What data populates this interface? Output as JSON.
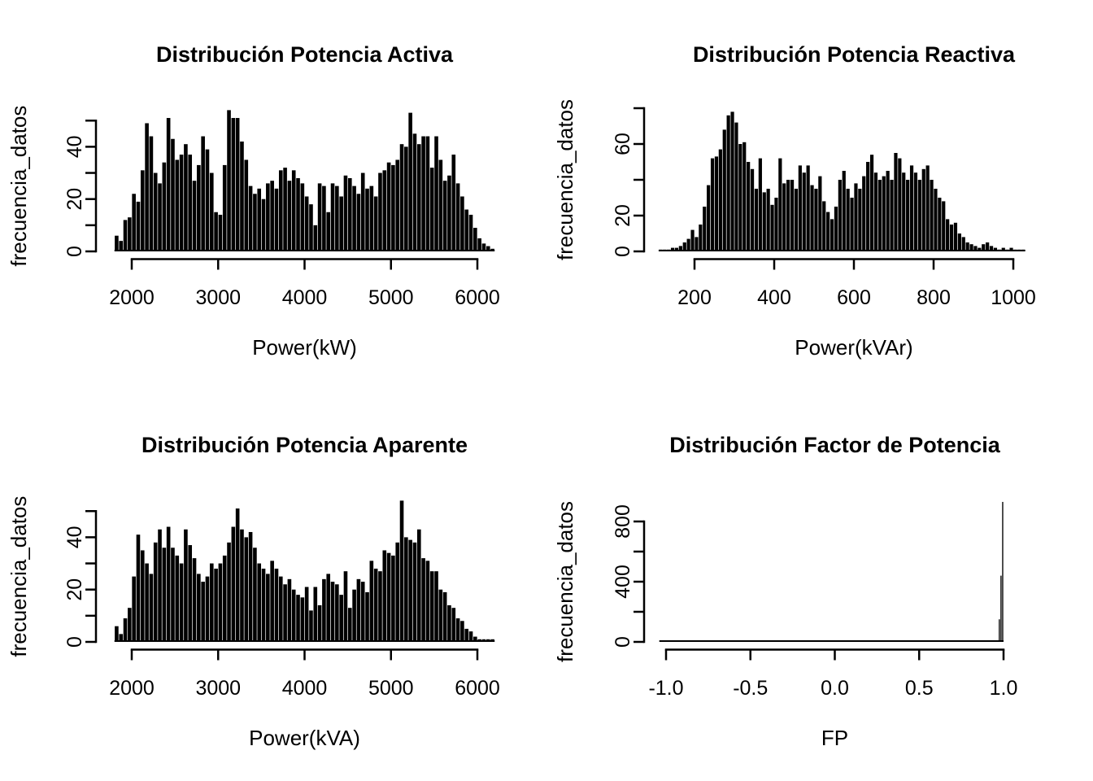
{
  "page": {
    "background": "#ffffff",
    "foreground": "#000000",
    "description": "2x2 grid of base-R style histograms"
  },
  "chart_data": [
    {
      "type": "bar",
      "variant": "histogram",
      "title": "Distribución Potencia Activa",
      "xlabel": "Power(kW)",
      "ylabel": "frecuencia_datos",
      "bar_color": "#000000",
      "grid": false,
      "legend": null,
      "x_ticks": [
        {
          "v": 2000,
          "label": "2000"
        },
        {
          "v": 3000,
          "label": "3000"
        },
        {
          "v": 4000,
          "label": "4000"
        },
        {
          "v": 5000,
          "label": "5000"
        },
        {
          "v": 6000,
          "label": "6000"
        }
      ],
      "y_ticks": [
        {
          "v": 0,
          "label": "0"
        },
        {
          "v": 10
        },
        {
          "v": 20,
          "label": "20"
        },
        {
          "v": 30
        },
        {
          "v": 40,
          "label": "40"
        },
        {
          "v": 50
        }
      ],
      "xlim": [
        1800,
        6200
      ],
      "ylim": [
        0,
        55
      ],
      "bins": {
        "start": 1800,
        "width": 50
      },
      "heights": [
        6,
        4,
        12,
        13,
        22,
        19,
        31,
        49,
        44,
        30,
        26,
        34,
        51,
        43,
        35,
        37,
        41,
        37,
        27,
        33,
        44,
        39,
        30,
        15,
        14,
        33,
        54,
        51,
        51,
        42,
        35,
        25,
        22,
        24,
        20,
        26,
        27,
        24,
        31,
        32,
        27,
        31,
        28,
        26,
        21,
        18,
        10,
        26,
        25,
        15,
        26,
        25,
        21,
        29,
        28,
        25,
        22,
        30,
        24,
        25,
        21,
        30,
        31,
        34,
        33,
        35,
        41,
        40,
        53,
        45,
        41,
        44,
        44,
        32,
        44,
        35,
        27,
        29,
        37,
        26,
        21,
        16,
        14,
        9,
        5,
        3,
        2,
        1
      ]
    },
    {
      "type": "bar",
      "variant": "histogram",
      "title": "Distribución Potencia Reactiva",
      "xlabel": "Power(kVAr)",
      "ylabel": "frecuencia_datos",
      "bar_color": "#000000",
      "grid": false,
      "legend": null,
      "x_ticks": [
        {
          "v": 200,
          "label": "200"
        },
        {
          "v": 400,
          "label": "400"
        },
        {
          "v": 600,
          "label": "600"
        },
        {
          "v": 800,
          "label": "800"
        },
        {
          "v": 1000,
          "label": "1000"
        }
      ],
      "y_ticks": [
        {
          "v": 0,
          "label": "0"
        },
        {
          "v": 20,
          "label": "20"
        },
        {
          "v": 40
        },
        {
          "v": 60,
          "label": "60"
        },
        {
          "v": 80
        }
      ],
      "xlim": [
        110,
        1030
      ],
      "ylim": [
        0,
        80
      ],
      "bins": {
        "start": 110,
        "width": 10
      },
      "heights": [
        1,
        1,
        1,
        2,
        2,
        3,
        5,
        7,
        12,
        8,
        15,
        25,
        37,
        52,
        53,
        57,
        68,
        76,
        78,
        72,
        60,
        61,
        50,
        46,
        35,
        52,
        33,
        35,
        26,
        30,
        52,
        38,
        40,
        40,
        35,
        48,
        44,
        48,
        37,
        35,
        42,
        28,
        22,
        18,
        25,
        40,
        45,
        35,
        30,
        38,
        35,
        42,
        50,
        54,
        44,
        40,
        42,
        45,
        40,
        55,
        52,
        44,
        40,
        48,
        44,
        40,
        46,
        48,
        40,
        35,
        30,
        28,
        18,
        15,
        16,
        10,
        8,
        5,
        4,
        3,
        2,
        4,
        5,
        3,
        2,
        1,
        2,
        1,
        2,
        1,
        1,
        1
      ]
    },
    {
      "type": "bar",
      "variant": "histogram",
      "title": "Distribución Potencia Aparente",
      "xlabel": "Power(kVA)",
      "ylabel": "frecuencia_datos",
      "bar_color": "#000000",
      "grid": false,
      "legend": null,
      "x_ticks": [
        {
          "v": 2000,
          "label": "2000"
        },
        {
          "v": 3000,
          "label": "3000"
        },
        {
          "v": 4000,
          "label": "4000"
        },
        {
          "v": 5000,
          "label": "5000"
        },
        {
          "v": 6000,
          "label": "6000"
        }
      ],
      "y_ticks": [
        {
          "v": 0,
          "label": "0"
        },
        {
          "v": 10
        },
        {
          "v": 20,
          "label": "20"
        },
        {
          "v": 30
        },
        {
          "v": 40,
          "label": "40"
        },
        {
          "v": 50
        }
      ],
      "xlim": [
        1800,
        6200
      ],
      "ylim": [
        0,
        55
      ],
      "bins": {
        "start": 1800,
        "width": 50
      },
      "heights": [
        6,
        3,
        9,
        13,
        25,
        41,
        35,
        30,
        26,
        38,
        43,
        36,
        44,
        36,
        33,
        30,
        43,
        37,
        32,
        26,
        23,
        25,
        30,
        28,
        30,
        33,
        38,
        44,
        51,
        43,
        40,
        42,
        36,
        30,
        28,
        26,
        31,
        28,
        25,
        22,
        24,
        20,
        18,
        17,
        21,
        12,
        21,
        14,
        24,
        26,
        23,
        22,
        18,
        27,
        13,
        20,
        24,
        23,
        19,
        31,
        28,
        27,
        35,
        34,
        33,
        38,
        54,
        40,
        39,
        38,
        43,
        32,
        31,
        27,
        27,
        20,
        19,
        14,
        13,
        9,
        8,
        5,
        4,
        2,
        1,
        1,
        1,
        1
      ]
    },
    {
      "type": "bar",
      "variant": "histogram",
      "title": "Distribución Factor de Potencia",
      "xlabel": "FP",
      "ylabel": "frecuencia_datos",
      "bar_color": "#000000",
      "grid": false,
      "legend": null,
      "x_ticks": [
        {
          "v": -1.0,
          "label": "-1.0"
        },
        {
          "v": -0.5,
          "label": "-0.5"
        },
        {
          "v": 0.0,
          "label": "0.0"
        },
        {
          "v": 0.5,
          "label": "0.5"
        },
        {
          "v": 1.0,
          "label": "1.0"
        }
      ],
      "y_ticks": [
        {
          "v": 0,
          "label": "0"
        },
        {
          "v": 200
        },
        {
          "v": 400,
          "label": "400"
        },
        {
          "v": 600
        },
        {
          "v": 800,
          "label": "800"
        }
      ],
      "xlim": [
        -1.04,
        1.0
      ],
      "ylim": [
        0,
        930
      ],
      "bins": {
        "start": -1.04,
        "width": 0.01
      },
      "heights_rle": [
        [
          201,
          0
        ],
        [
          1,
          150
        ],
        [
          1,
          440
        ],
        [
          1,
          930
        ]
      ]
    }
  ]
}
